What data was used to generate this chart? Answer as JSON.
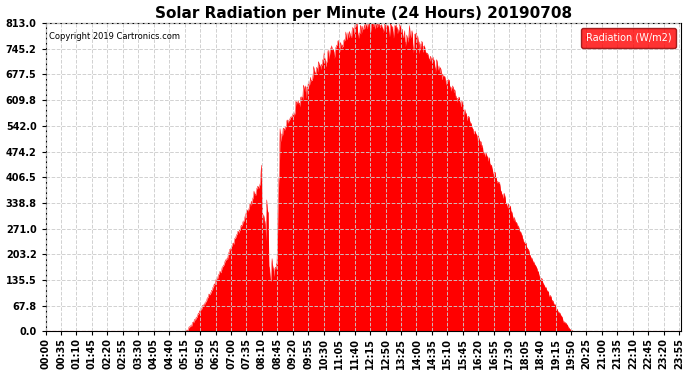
{
  "title": "Solar Radiation per Minute (24 Hours) 20190708",
  "copyright_text": "Copyright 2019 Cartronics.com",
  "legend_label": "Radiation (W/m2)",
  "fill_color": "#FF0000",
  "line_color": "#FF0000",
  "background_color": "#FFFFFF",
  "grid_color": "#AAAAAA",
  "yticks": [
    0.0,
    67.8,
    135.5,
    203.2,
    271.0,
    338.8,
    406.5,
    474.2,
    542.0,
    609.8,
    677.5,
    745.2,
    813.0
  ],
  "ymax": 813.0,
  "ymin": 0.0,
  "total_minutes": 1440,
  "sunrise_minute": 315,
  "sunset_minute": 1195,
  "peak_minute": 795,
  "peak_value": 813.0,
  "title_fontsize": 11,
  "tick_label_fontsize": 7,
  "xtick_interval_minutes": 35
}
